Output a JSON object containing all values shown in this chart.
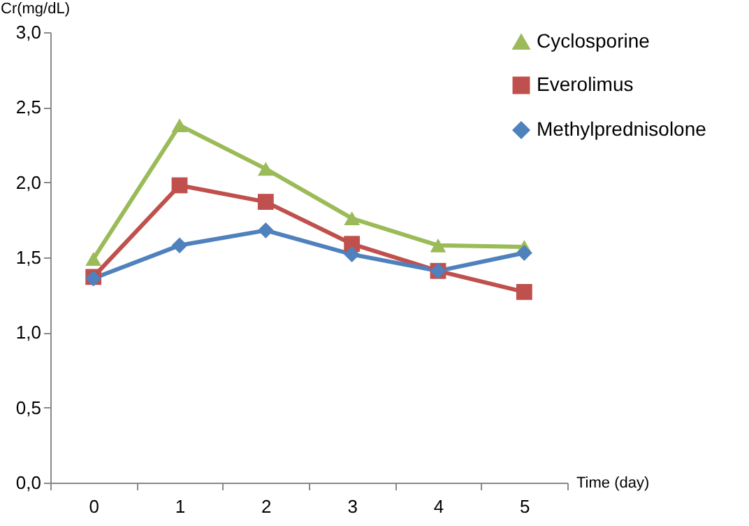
{
  "chart_data": {
    "type": "line",
    "xlabel": "Time (day)",
    "ylabel": "Cr(mg/dL)",
    "categories": [
      "0",
      "1",
      "2",
      "3",
      "4",
      "5"
    ],
    "series": [
      {
        "name": "Cyclosporine",
        "color": "#9bbb59",
        "marker": "triangle",
        "values": [
          1.49,
          2.38,
          2.09,
          1.76,
          1.58,
          1.57
        ]
      },
      {
        "name": "Everolimus",
        "color": "#c0504d",
        "marker": "square",
        "values": [
          1.37,
          1.98,
          1.87,
          1.59,
          1.41,
          1.27
        ]
      },
      {
        "name": "Methylprednisolone",
        "color": "#4f81bd",
        "marker": "diamond",
        "values": [
          1.36,
          1.58,
          1.68,
          1.52,
          1.41,
          1.53
        ]
      }
    ],
    "ylim": [
      0,
      3
    ],
    "yticks": [
      {
        "value": 0,
        "label": "0,0"
      },
      {
        "value": 0.5,
        "label": "0,5"
      },
      {
        "value": 1,
        "label": "1,0"
      },
      {
        "value": 1.5,
        "label": "1,5"
      },
      {
        "value": 2,
        "label": "2,0"
      },
      {
        "value": 2.5,
        "label": "2,5"
      },
      {
        "value": 3,
        "label": "3,0"
      }
    ],
    "grid": false,
    "legend": "top right",
    "line_style": "solid"
  }
}
